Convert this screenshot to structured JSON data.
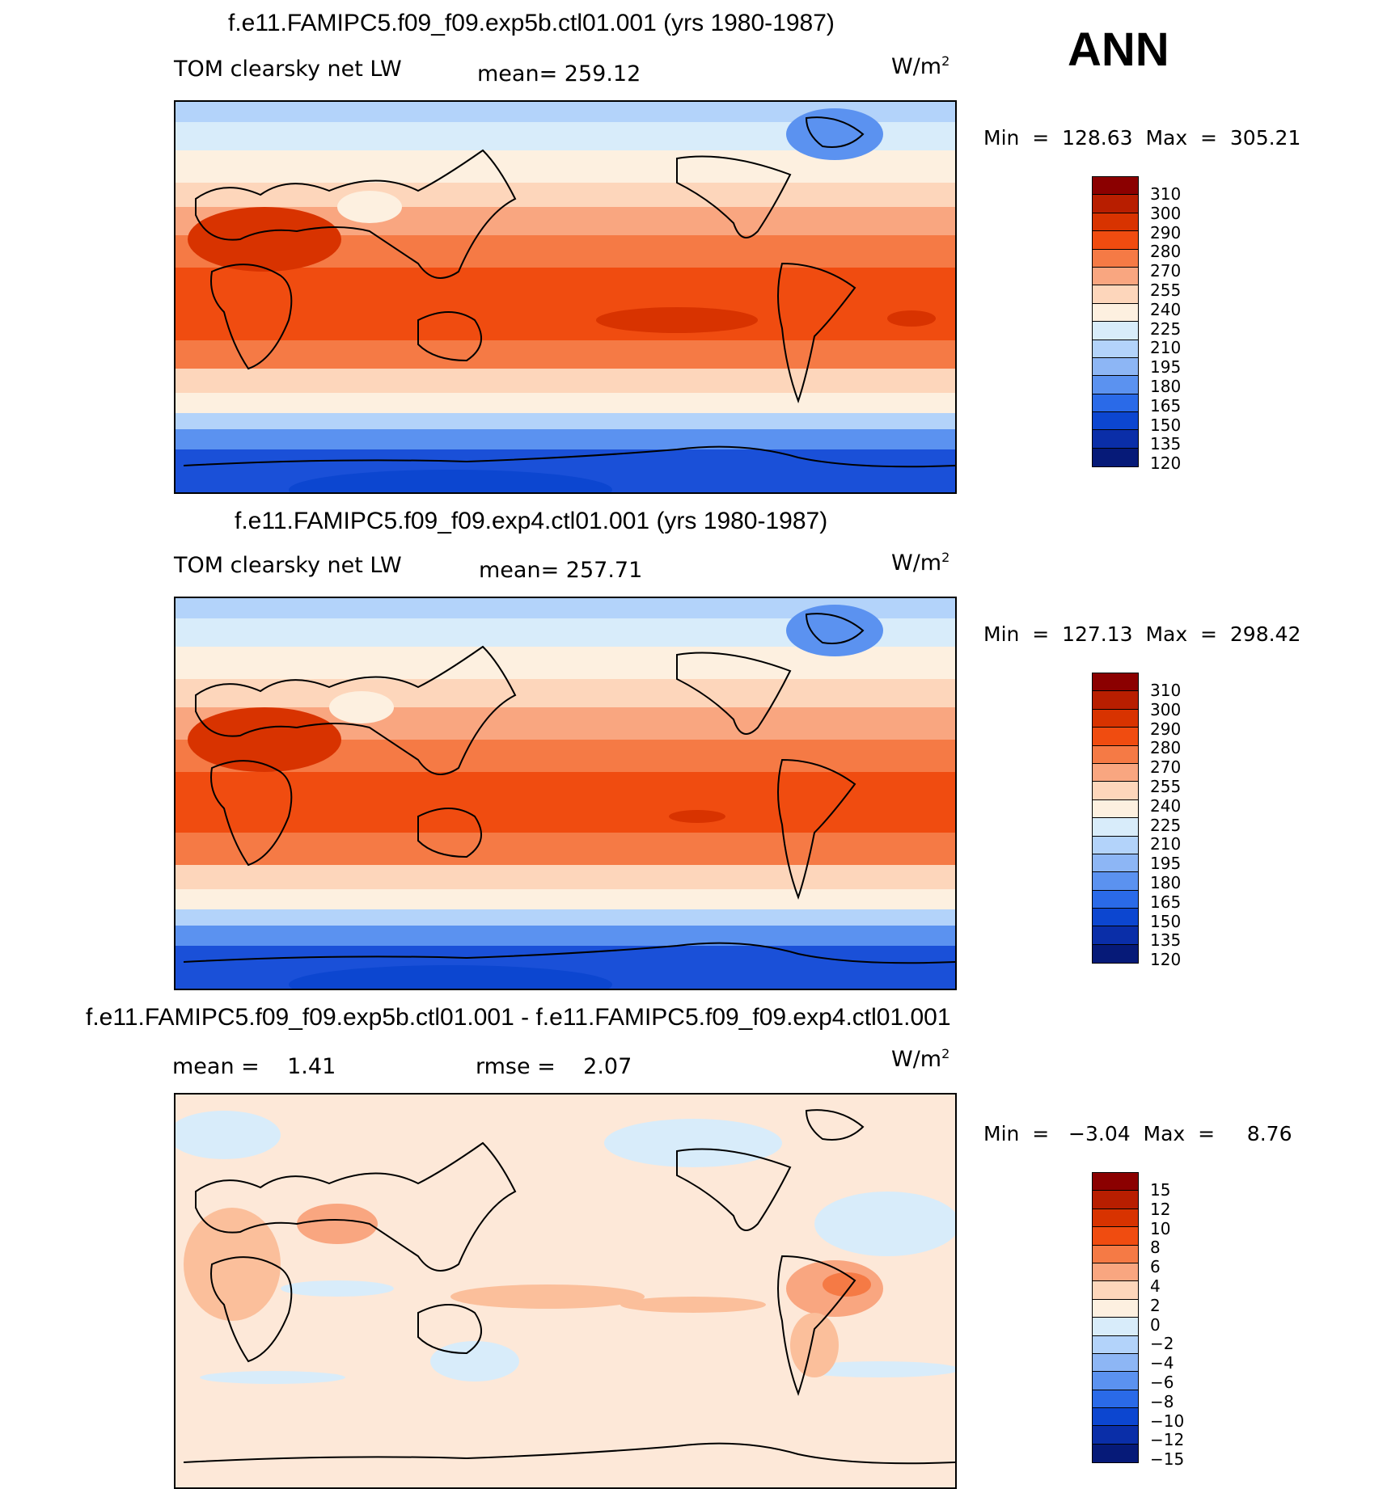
{
  "season": "ANN",
  "panels": [
    {
      "title": "f.e11.FAMIPC5.f09_f09.exp5b.ctl01.001 (yrs 1980-1987)",
      "variable": "TOM clearsky net LW",
      "mean_label": "mean=",
      "mean_value": "259.12",
      "units": "W/m",
      "units_sup": "2",
      "min_max": "Min  =  128.63  Max  =  305.21",
      "colorbar_labels": [
        "310",
        "300",
        "290",
        "280",
        "270",
        "255",
        "240",
        "225",
        "210",
        "195",
        "180",
        "165",
        "150",
        "135",
        "120"
      ],
      "colorbar_colors": [
        "#8b0000",
        "#b81e00",
        "#d83300",
        "#f04c10",
        "#f57a45",
        "#f9a680",
        "#fdd6bb",
        "#fdf0e0",
        "#d8ecfa",
        "#b3d3fa",
        "#8db6f5",
        "#5b92f0",
        "#2a6ae8",
        "#0c46d0",
        "#0a2ea8",
        "#061a78"
      ]
    },
    {
      "title": "f.e11.FAMIPC5.f09_f09.exp4.ctl01.001 (yrs 1980-1987)",
      "variable": "TOM clearsky net LW",
      "mean_label": "mean=",
      "mean_value": "257.71",
      "units": "W/m",
      "units_sup": "2",
      "min_max": "Min  =  127.13  Max  =  298.42",
      "colorbar_labels": [
        "310",
        "300",
        "290",
        "280",
        "270",
        "255",
        "240",
        "225",
        "210",
        "195",
        "180",
        "165",
        "150",
        "135",
        "120"
      ],
      "colorbar_colors": [
        "#8b0000",
        "#b81e00",
        "#d83300",
        "#f04c10",
        "#f57a45",
        "#f9a680",
        "#fdd6bb",
        "#fdf0e0",
        "#d8ecfa",
        "#b3d3fa",
        "#8db6f5",
        "#5b92f0",
        "#2a6ae8",
        "#0c46d0",
        "#0a2ea8",
        "#061a78"
      ]
    },
    {
      "title": "f.e11.FAMIPC5.f09_f09.exp5b.ctl01.001 - f.e11.FAMIPC5.f09_f09.exp4.ctl01.001",
      "mean_label": "mean  =",
      "mean_value": "1.41",
      "rmse_label": "rmse  =",
      "rmse_value": "2.07",
      "units": "W/m",
      "units_sup": "2",
      "min_max": "Min  =   −3.04  Max  =     8.76",
      "colorbar_labels": [
        "15",
        "12",
        "10",
        "8",
        "6",
        "4",
        "2",
        "0",
        "−2",
        "−4",
        "−6",
        "−8",
        "−10",
        "−12",
        "−15"
      ],
      "colorbar_colors": [
        "#8b0000",
        "#b81e00",
        "#d83300",
        "#f04c10",
        "#f57a45",
        "#f9a680",
        "#fdd6bb",
        "#fdf0e0",
        "#d8ecfa",
        "#b3d3fa",
        "#8db6f5",
        "#5b92f0",
        "#2a6ae8",
        "#0c46d0",
        "#0a2ea8",
        "#061a78"
      ]
    }
  ]
}
